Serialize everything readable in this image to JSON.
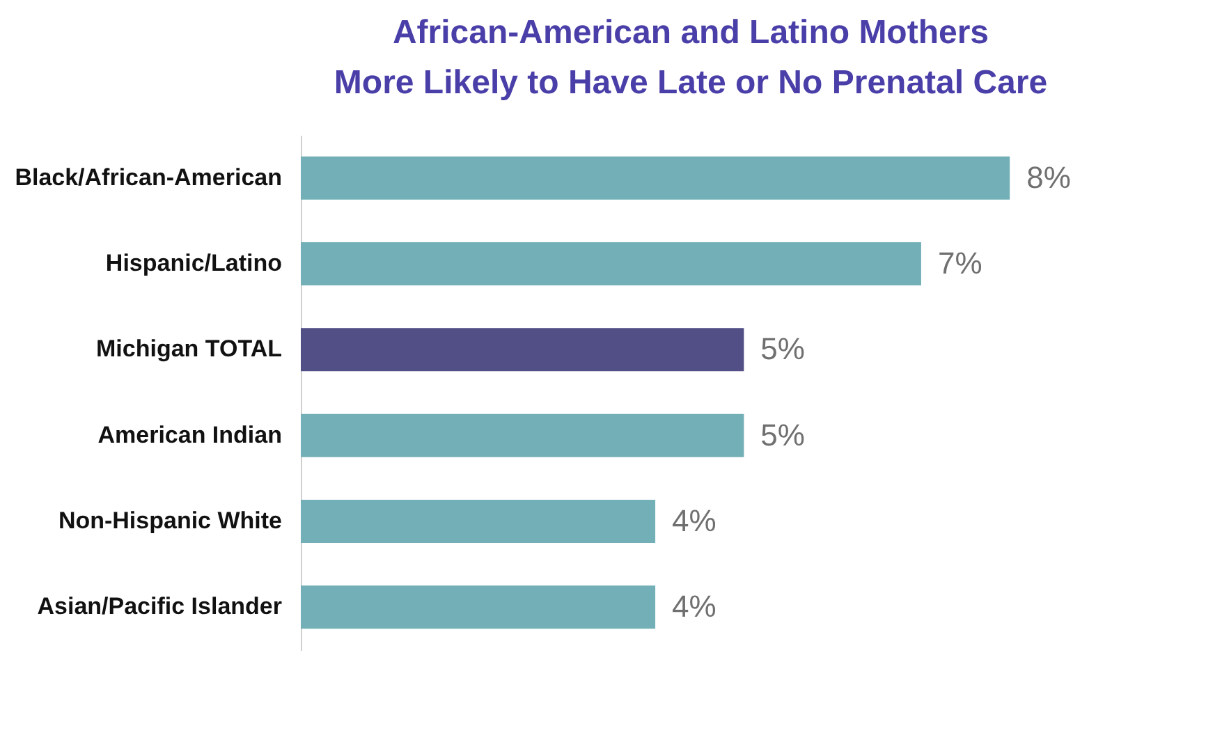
{
  "chart_data": {
    "type": "bar",
    "orientation": "horizontal",
    "title": "African-American and Latino Mothers\nMore Likely to Have Late or No Prenatal Care",
    "categories": [
      "Black/African-American",
      "Hispanic/Latino",
      "Michigan TOTAL",
      "American Indian",
      "Non-Hispanic White",
      "Asian/Pacific Islander"
    ],
    "values": [
      8,
      7,
      5,
      5,
      4,
      4
    ],
    "colors": [
      "#72afb6",
      "#72afb6",
      "#524f86",
      "#72afb6",
      "#72afb6",
      "#72afb6"
    ],
    "value_labels": [
      "8%",
      "7%",
      "5%",
      "5%",
      "4%",
      "4%"
    ],
    "data_labels": false
  }
}
